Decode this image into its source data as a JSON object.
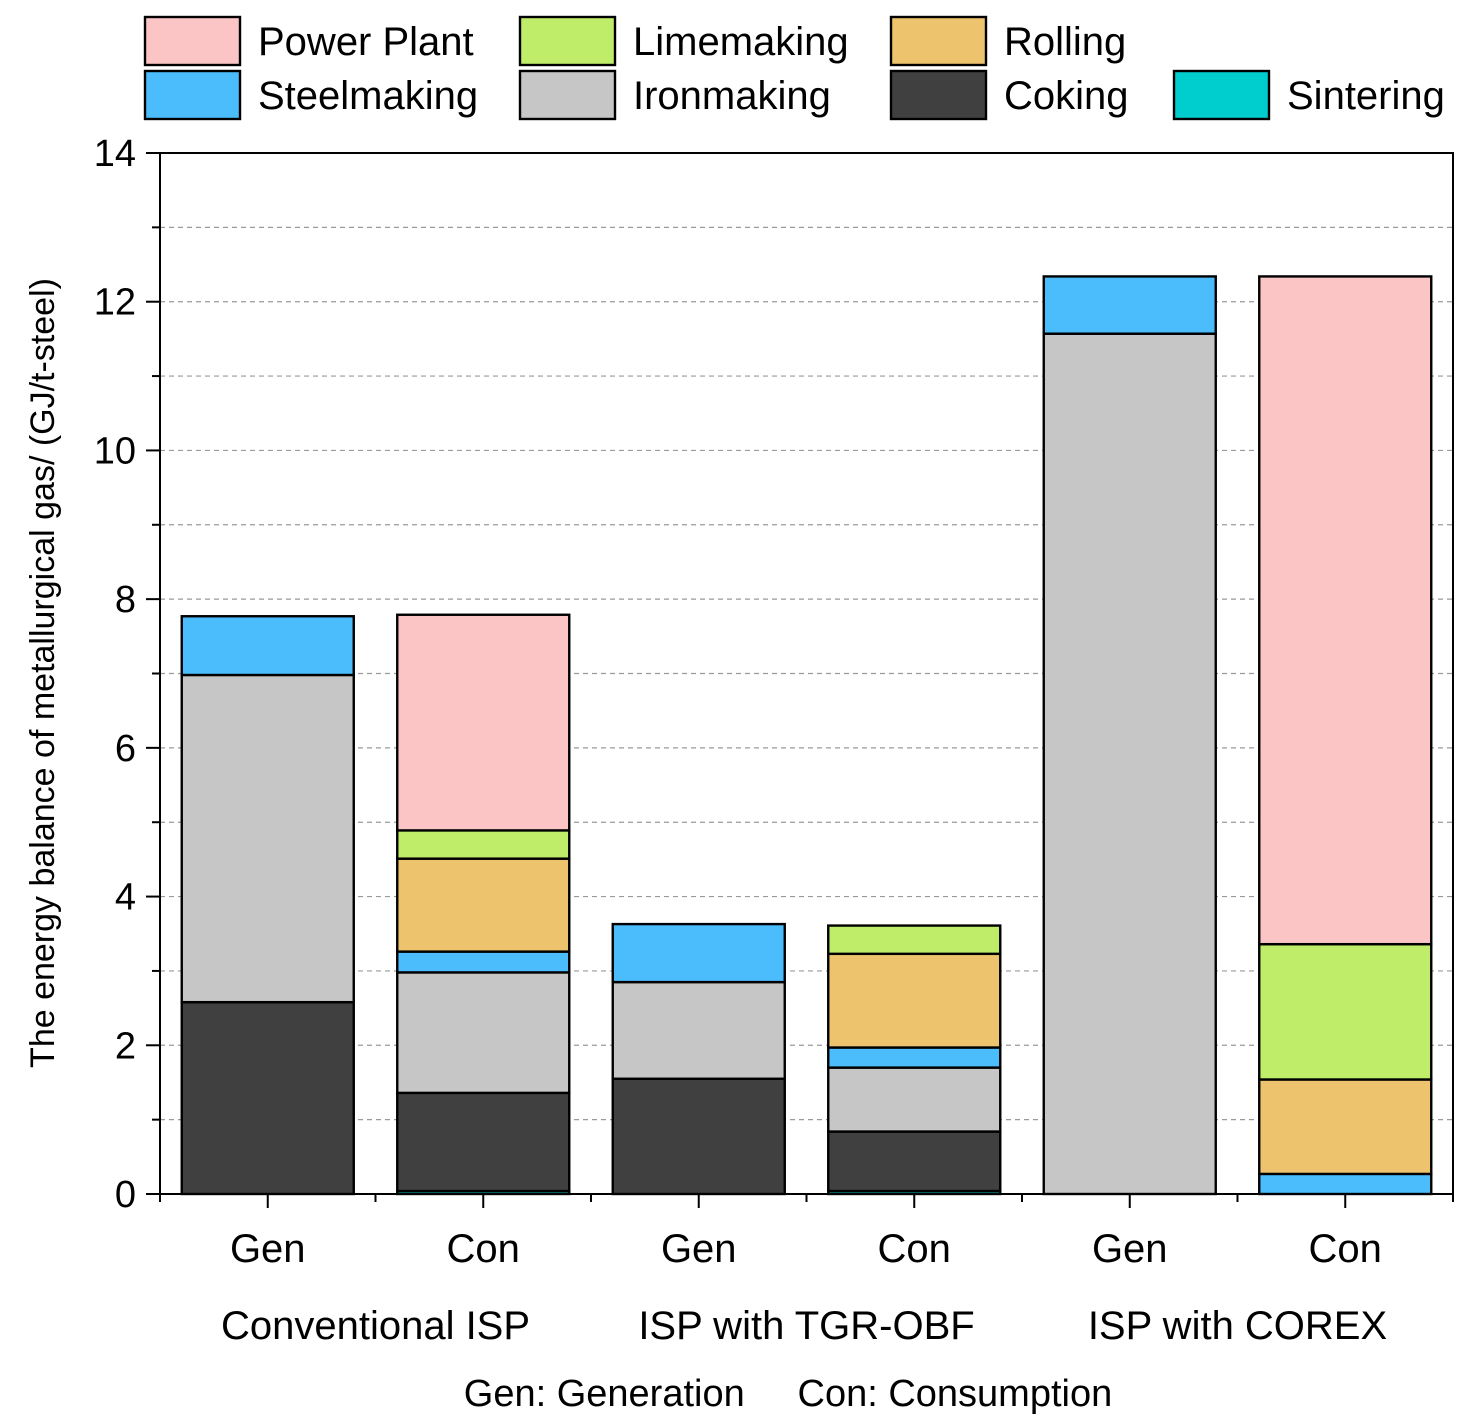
{
  "chart_data": {
    "type": "bar",
    "stacked": true,
    "ylabel": "The energy balance of metallurgical gas/ (GJ/t-steel)",
    "ylim": [
      0,
      14
    ],
    "yticks": [
      "0",
      "2",
      "4",
      "6",
      "8",
      "10",
      "12",
      "14"
    ],
    "grid": "horizontal dashed",
    "legend_position": "top",
    "legend": [
      {
        "name": "Power Plant",
        "color": "#fcc5c5"
      },
      {
        "name": "Limemaking",
        "color": "#bfed6a"
      },
      {
        "name": "Rolling",
        "color": "#edc46d"
      },
      {
        "name": "Steelmaking",
        "color": "#4bbdfc"
      },
      {
        "name": "Ironmaking",
        "color": "#c6c6c6"
      },
      {
        "name": "Coking",
        "color": "#404040"
      },
      {
        "name": "Sintering",
        "color": "#00cdcd"
      }
    ],
    "categories": [
      "Gen",
      "Con",
      "Gen",
      "Con",
      "Gen",
      "Con"
    ],
    "groups": [
      "Conventional ISP",
      "ISP with TGR-OBF",
      "ISP with COREX"
    ],
    "footnote": "Gen: Generation     Con: Consumption",
    "series": [
      {
        "name": "Sintering",
        "values": [
          0,
          0.04,
          0,
          0.04,
          0,
          0
        ]
      },
      {
        "name": "Coking",
        "values": [
          2.58,
          1.32,
          1.55,
          0.8,
          0,
          0
        ]
      },
      {
        "name": "Ironmaking",
        "values": [
          4.4,
          1.62,
          1.3,
          0.86,
          11.57,
          0
        ]
      },
      {
        "name": "Steelmaking",
        "values": [
          0.79,
          0.28,
          0.78,
          0.27,
          0.77,
          0.27
        ]
      },
      {
        "name": "Rolling",
        "values": [
          0,
          1.25,
          0,
          1.26,
          0,
          1.27
        ]
      },
      {
        "name": "Limemaking",
        "values": [
          0,
          0.38,
          0,
          0.38,
          0,
          1.82
        ]
      },
      {
        "name": "Power Plant",
        "values": [
          0,
          2.9,
          0,
          0,
          0,
          8.98
        ]
      }
    ],
    "totals": [
      7.77,
      7.77,
      3.63,
      3.63,
      12.34,
      12.34
    ]
  }
}
